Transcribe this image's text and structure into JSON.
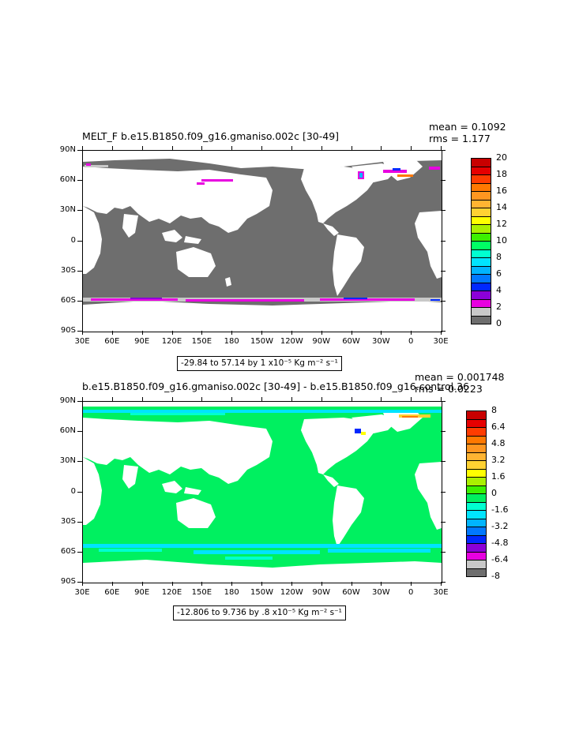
{
  "panels": [
    {
      "title": "MELT_F b.e15.B1850.f09_g16.gmaniso.002c ​[30-49]",
      "stats_mean": "mean = 0.1092",
      "stats_rms": "rms = 1.177",
      "range_text": "-29.84 to 57.14 by 1 x10⁻⁵ Kg m⁻² s⁻¹",
      "land_color": "#ffffff",
      "ocean_color": "#6e6e6e",
      "colorbar": {
        "colors": [
          "#6e6e6e",
          "#c8c8c8",
          "#e800e0",
          "#8c00d8",
          "#0028ff",
          "#0078ff",
          "#00b4ff",
          "#00e4ff",
          "#00ffd0",
          "#00ff64",
          "#3cf000",
          "#aaf000",
          "#ffff00",
          "#ffd232",
          "#ffb432",
          "#ff9620",
          "#ff7800",
          "#ff3c00",
          "#e60000",
          "#c80000"
        ],
        "labels": [
          "0",
          "2",
          "4",
          "6",
          "8",
          "10",
          "12",
          "14",
          "16",
          "18",
          "20"
        ]
      }
    },
    {
      "title": "b.e15.B1850.f09_g16.gmaniso.002c [30-49] - b.e15.B1850.f09_g16.control.36",
      "stats_mean": "mean = 0.001748",
      "stats_rms": "rms = 0.0223",
      "range_text": "-12.806 to 9.736 by .8 x10⁻⁵ Kg m⁻² s⁻¹",
      "land_color": "#ffffff",
      "ocean_color": "#00f060",
      "colorbar": {
        "colors": [
          "#6e6e6e",
          "#c8c8c8",
          "#e800e0",
          "#8c00d8",
          "#0028ff",
          "#0078ff",
          "#00b4ff",
          "#00e4ff",
          "#00ffd0",
          "#00f060",
          "#3cf000",
          "#aaf000",
          "#ffff00",
          "#ffd232",
          "#ffb432",
          "#ff9620",
          "#ff7800",
          "#ff3c00",
          "#e60000",
          "#c80000"
        ],
        "labels": [
          "-8",
          "-6.4",
          "-4.8",
          "-3.2",
          "-1.6",
          "0",
          "1.6",
          "3.2",
          "4.8",
          "6.4",
          "8"
        ]
      }
    }
  ],
  "axes": {
    "x_ticks": [
      "30E",
      "60E",
      "90E",
      "120E",
      "150E",
      "180",
      "150W",
      "120W",
      "90W",
      "60W",
      "30W",
      "0",
      "30E"
    ],
    "y_ticks": [
      "90N",
      "60N",
      "30N",
      "0",
      "30S",
      "60S",
      "90S"
    ]
  },
  "chart_data": [
    {
      "type": "heatmap",
      "title": "MELT_F b.e15.B1850.f09_g16.gmaniso.002c [30-49]",
      "xlabel": "",
      "ylabel": "",
      "xlim": [
        30,
        390
      ],
      "ylim": [
        -90,
        90
      ],
      "colorbar_levels": [
        0,
        2,
        4,
        6,
        8,
        10,
        12,
        14,
        16,
        18,
        20
      ],
      "mean": 0.1092,
      "rms": 1.177
    },
    {
      "type": "heatmap",
      "title": "b.e15.B1850.f09_g16.gmaniso.002c [30-49] - b.e15.B1850.f09_g16.control.36",
      "xlabel": "",
      "ylabel": "",
      "xlim": [
        30,
        390
      ],
      "ylim": [
        -90,
        90
      ],
      "colorbar_levels": [
        -8,
        -6.4,
        -4.8,
        -3.2,
        -1.6,
        0,
        1.6,
        3.2,
        4.8,
        6.4,
        8
      ],
      "mean": 0.001748,
      "rms": 0.0223
    }
  ]
}
